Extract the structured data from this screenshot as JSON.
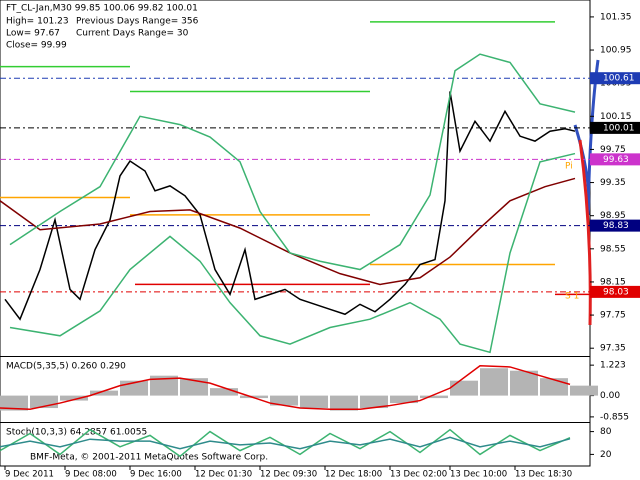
{
  "chart_data": [
    {
      "type": "line",
      "title": "FT_CL-Jan,M30  99.85 100.06 99.82 100.01",
      "info": [
        "High= 101.23",
        "Previous Days Range= 356",
        "Low= 97.67",
        "Current Days Range= 30",
        "Close= 99.99"
      ],
      "xlim": [
        0,
        118
      ],
      "xticks": [
        {
          "value": 1,
          "label": "9 Dec 2011"
        },
        {
          "value": 13,
          "label": "9 Dec 08:00"
        },
        {
          "value": 26,
          "label": "9 Dec 16:00"
        },
        {
          "value": 39,
          "label": "12 Dec 01:30"
        },
        {
          "value": 52,
          "label": "12 Dec 09:30"
        },
        {
          "value": 65,
          "label": "12 Dec 18:00"
        },
        {
          "value": 78,
          "label": "13 Dec 02:00"
        },
        {
          "value": 90,
          "label": "13 Dec 10:00"
        },
        {
          "value": 103,
          "label": "13 Dec 18:30"
        }
      ],
      "ylim": [
        97.28,
        101.53
      ],
      "yticks": [
        101.35,
        100.95,
        100.55,
        100.15,
        99.75,
        99.35,
        98.95,
        98.55,
        98.15,
        97.75,
        97.35
      ],
      "series": [
        {
          "color": "#000000",
          "x": [
            1,
            4,
            8,
            11,
            14,
            16,
            19,
            22,
            24,
            26,
            29,
            31,
            34,
            37,
            40,
            43,
            46,
            49,
            51,
            54,
            57,
            60,
            63,
            66,
            69,
            72,
            75,
            78,
            81,
            84,
            87,
            89,
            90,
            92,
            95,
            98,
            101,
            104,
            107,
            110,
            113,
            115
          ],
          "values": [
            97.94,
            97.7,
            98.3,
            98.9,
            98.06,
            97.94,
            98.54,
            98.9,
            99.43,
            99.61,
            99.49,
            99.25,
            99.31,
            99.19,
            98.96,
            98.3,
            98.0,
            98.54,
            97.94,
            98.0,
            98.06,
            97.94,
            97.88,
            97.82,
            97.76,
            97.88,
            97.79,
            97.94,
            98.12,
            98.36,
            98.42,
            99.13,
            100.45,
            99.73,
            100.09,
            99.85,
            100.21,
            99.91,
            99.85,
            99.97,
            100.0,
            99.97
          ]
        },
        {
          "color": "#800000",
          "x": [
            0,
            8,
            20,
            30,
            38,
            48,
            58,
            68,
            76,
            84,
            90,
            96,
            102,
            109,
            115
          ],
          "values": [
            99.13,
            98.78,
            98.85,
            99.0,
            99.02,
            98.8,
            98.5,
            98.25,
            98.12,
            98.2,
            98.45,
            98.8,
            99.13,
            99.3,
            99.4
          ]
        },
        {
          "color": "#3cb371",
          "x": [
            2,
            12,
            20,
            28,
            36,
            42,
            48,
            52,
            58,
            64,
            72,
            80,
            86,
            91,
            96,
            102,
            108,
            115
          ],
          "values": [
            98.6,
            99.0,
            99.3,
            100.15,
            100.05,
            99.9,
            99.6,
            99.0,
            98.5,
            98.4,
            98.3,
            98.6,
            99.2,
            100.7,
            100.9,
            100.8,
            100.3,
            100.2
          ]
        },
        {
          "color": "#3cb371",
          "x": [
            2,
            12,
            20,
            26,
            34,
            40,
            46,
            52,
            58,
            66,
            74,
            82,
            88,
            92,
            98,
            102,
            108,
            115
          ],
          "values": [
            97.6,
            97.5,
            97.8,
            98.3,
            98.7,
            98.4,
            97.9,
            97.5,
            97.4,
            97.6,
            97.7,
            97.9,
            97.7,
            97.4,
            97.3,
            98.5,
            99.6,
            99.7
          ]
        }
      ],
      "levels": [
        {
          "value": 100.75,
          "from": 0,
          "to": 26,
          "color": "#32cd32"
        },
        {
          "value": 100.45,
          "from": 26,
          "to": 74,
          "color": "#32cd32"
        },
        {
          "value": 101.29,
          "from": 74,
          "to": 111,
          "color": "#32cd32"
        },
        {
          "value": 99.17,
          "from": 0,
          "to": 26,
          "color": "#ffa500"
        },
        {
          "value": 98.96,
          "from": 26,
          "to": 74,
          "color": "#ffa500"
        },
        {
          "value": 98.36,
          "from": 74,
          "to": 111,
          "color": "#ffa500"
        },
        {
          "value": 98.12,
          "from": 27,
          "to": 74,
          "color": "#e00000"
        },
        {
          "value": 98.0,
          "from": 111,
          "to": 118,
          "color": "#e00000"
        }
      ],
      "price_markers": [
        {
          "value": 100.61,
          "color": "#1e3cb4"
        },
        {
          "value": 100.01,
          "color": "#000000"
        },
        {
          "value": 99.63,
          "color": "#cc33cc"
        },
        {
          "value": 98.83,
          "color": "#000080"
        },
        {
          "value": 98.03,
          "color": "#e00000"
        }
      ],
      "annotations": [
        {
          "text": "Pi",
          "x": 113,
          "y": 99.55
        },
        {
          "text": "S 1",
          "x": 113,
          "y": 97.98
        }
      ]
    },
    {
      "type": "bar",
      "title": "MACD(5,35,5) 0.260 0.290",
      "color": "#b4b4b4",
      "ylim": [
        -1.02,
        1.51
      ],
      "yticks": [
        1.223,
        {
          "value": 0,
          "label": "0.00"
        },
        -0.855
      ],
      "x": [
        0,
        6,
        12,
        18,
        24,
        30,
        36,
        42,
        48,
        54,
        60,
        66,
        72,
        78,
        84,
        90,
        96,
        102,
        108,
        114
      ],
      "values": [
        -0.6,
        -0.5,
        -0.2,
        0.2,
        0.6,
        0.8,
        0.7,
        0.3,
        -0.1,
        -0.4,
        -0.5,
        -0.6,
        -0.5,
        -0.3,
        -0.1,
        0.6,
        1.1,
        1.0,
        0.7,
        0.4
      ],
      "series": [
        {
          "color": "#e00000",
          "values": [
            -0.5,
            -0.55,
            -0.3,
            0.0,
            0.4,
            0.65,
            0.7,
            0.5,
            0.1,
            -0.3,
            -0.5,
            -0.55,
            -0.55,
            -0.4,
            -0.2,
            0.3,
            1.2,
            1.15,
            0.8,
            0.45
          ]
        }
      ]
    },
    {
      "type": "line",
      "title": "Stoch(10,3,3) 64.2857 61.0055",
      "ylim": [
        0,
        100
      ],
      "yticks": [
        80,
        20
      ],
      "series": [
        {
          "color": "#3cb371",
          "x": [
            0,
            6,
            12,
            18,
            24,
            30,
            36,
            42,
            48,
            54,
            60,
            66,
            72,
            78,
            84,
            90,
            96,
            102,
            108,
            114
          ],
          "values": [
            30,
            75,
            20,
            85,
            40,
            70,
            15,
            80,
            30,
            65,
            20,
            75,
            35,
            80,
            25,
            85,
            20,
            70,
            30,
            64
          ]
        },
        {
          "color": "#2e8b8b",
          "x": [
            0,
            6,
            12,
            18,
            24,
            30,
            36,
            42,
            48,
            54,
            60,
            66,
            72,
            78,
            84,
            90,
            96,
            102,
            108,
            114
          ],
          "values": [
            40,
            55,
            40,
            60,
            55,
            55,
            35,
            55,
            45,
            50,
            35,
            55,
            45,
            60,
            40,
            65,
            40,
            55,
            40,
            61
          ]
        }
      ]
    }
  ],
  "footer": "BMF-Meta, © 2001-2011 MetaQuotes Software Corp."
}
